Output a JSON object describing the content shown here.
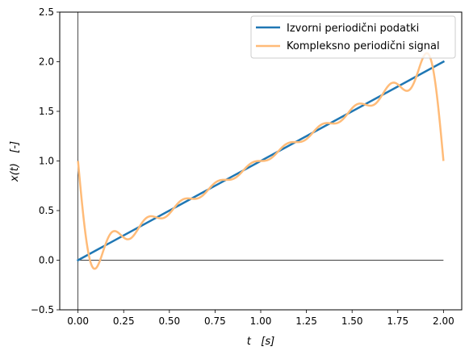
{
  "chart_data": {
    "type": "line",
    "xlabel": "t   [s]",
    "ylabel": "x(t)   [-]",
    "xlim": [
      -0.1,
      2.1
    ],
    "ylim": [
      -0.5,
      2.5
    ],
    "xticks": [
      0.0,
      0.25,
      0.5,
      0.75,
      1.0,
      1.25,
      1.5,
      1.75,
      2.0
    ],
    "yticks": [
      -0.5,
      0.0,
      0.5,
      1.0,
      1.5,
      2.0,
      2.5
    ],
    "xtick_labels": [
      "0.00",
      "0.25",
      "0.50",
      "0.75",
      "1.00",
      "1.25",
      "1.50",
      "1.75",
      "2.00"
    ],
    "ytick_labels": [
      "−0.5",
      "0.0",
      "0.5",
      "1.0",
      "1.5",
      "2.0",
      "2.5"
    ],
    "reference_lines": {
      "horizontal_at_y": 0,
      "horizontal_x_range": [
        0,
        2
      ],
      "vertical_at_x": 0
    },
    "legend_position": "top-right",
    "series": [
      {
        "name": "Izvorni periodični podatki",
        "color": "#1f77b4",
        "x": [
          0,
          2
        ],
        "y": [
          0,
          2
        ]
      },
      {
        "name": "Kompleksno periodični signal",
        "color": "#ffbb78",
        "fourier_terms": 10,
        "period": 2
      }
    ]
  }
}
